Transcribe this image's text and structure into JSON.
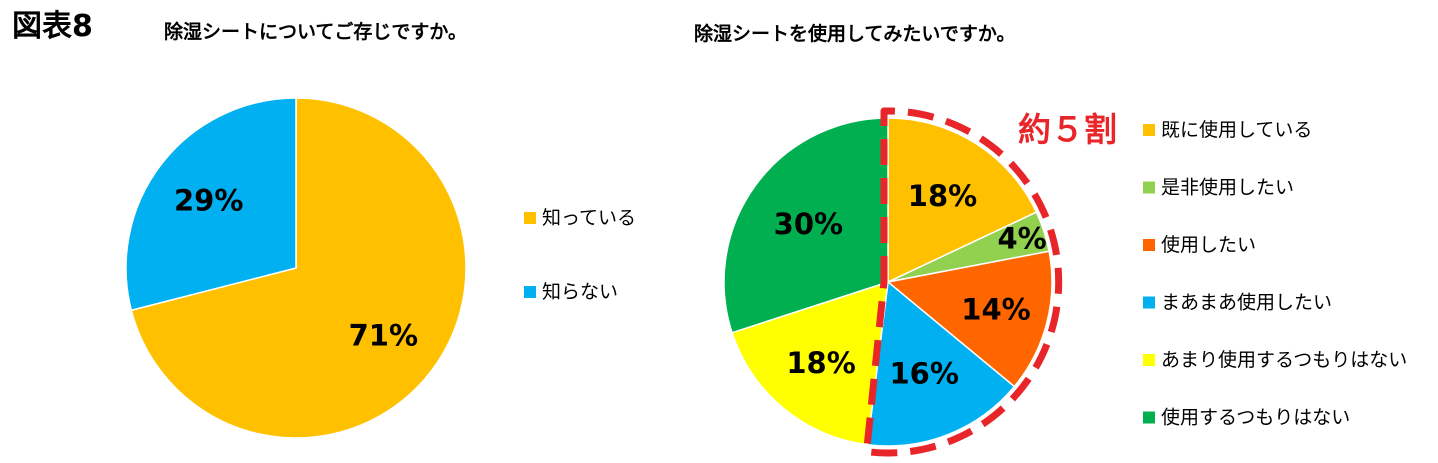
{
  "figure_label": "図表8",
  "callout_text": "約５割",
  "chart_data": [
    {
      "type": "pie",
      "title": "除湿シートについてご存じですか。",
      "slices": [
        {
          "label": "知っている",
          "value": 71,
          "display": "71%",
          "color": "#FFC000"
        },
        {
          "label": "知らない",
          "value": 29,
          "display": "29%",
          "color": "#00B0F0"
        }
      ],
      "legend_position": "right"
    },
    {
      "type": "pie",
      "title": "除湿シートを使用してみたいですか。",
      "slices": [
        {
          "label": "既に使用している",
          "value": 18,
          "display": "18%",
          "color": "#FFC000"
        },
        {
          "label": "是非使用したい",
          "value": 4,
          "display": "4%",
          "color": "#92D050"
        },
        {
          "label": "使用したい",
          "value": 14,
          "display": "14%",
          "color": "#FF6600"
        },
        {
          "label": "まあまあ使用したい",
          "value": 16,
          "display": "16%",
          "color": "#00B0F0"
        },
        {
          "label": "あまり使用するつもりはない",
          "value": 18,
          "display": "18%",
          "color": "#FFFF00"
        },
        {
          "label": "使用するつもりはない",
          "value": 30,
          "display": "30%",
          "color": "#00B050"
        }
      ],
      "legend_position": "right",
      "highlight_color": "#E8262A"
    }
  ]
}
